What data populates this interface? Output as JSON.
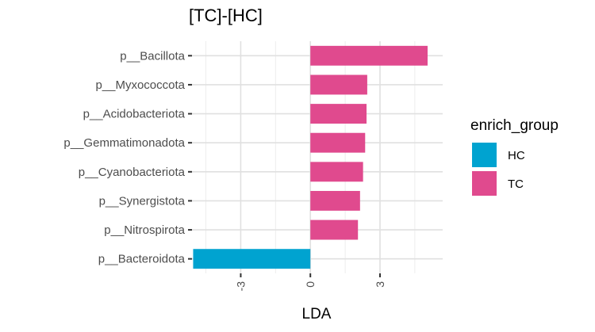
{
  "chart_data": {
    "type": "bar",
    "orientation": "horizontal",
    "title": "[TC]-[HC]",
    "xlabel": "LDA",
    "ylabel": "",
    "xlim": [
      -5.1,
      5.7
    ],
    "xticks": [
      -3,
      0,
      3
    ],
    "xtick_labels": [
      "-3",
      "0",
      "3"
    ],
    "grid": true,
    "legend_position": "right",
    "legend_title": "enrich_group",
    "groups": [
      {
        "name": "HC",
        "color": "#00A3D0"
      },
      {
        "name": "TC",
        "color": "#E04A8E"
      }
    ],
    "categories": [
      "p__Bacillota",
      "p__Myxococcota",
      "p__Acidobacteriota",
      "p__Gemmatimonadota",
      "p__Cyanobacteriota",
      "p__Synergistota",
      "p__Nitrospirota",
      "p__Bacteroidota"
    ],
    "values": [
      5.05,
      2.45,
      2.42,
      2.36,
      2.27,
      2.14,
      2.05,
      -5.05
    ],
    "enrich_group": [
      "TC",
      "TC",
      "TC",
      "TC",
      "TC",
      "TC",
      "TC",
      "HC"
    ]
  }
}
